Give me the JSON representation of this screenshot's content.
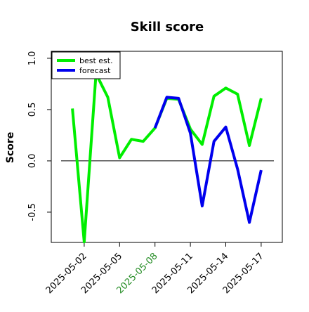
{
  "chart_data": {
    "type": "line",
    "title": "Skill score",
    "y_label": "Score",
    "x": [
      "2025-05-01",
      "2025-05-02",
      "2025-05-03",
      "2025-05-04",
      "2025-05-05",
      "2025-05-06",
      "2025-05-07",
      "2025-05-08",
      "2025-05-09",
      "2025-05-10",
      "2025-05-11",
      "2025-05-12",
      "2025-05-13",
      "2025-05-14",
      "2025-05-15",
      "2025-05-16",
      "2025-05-17"
    ],
    "series": [
      {
        "name": "best est.",
        "color": "#00ee00",
        "values": [
          0.51,
          -0.79,
          0.85,
          0.62,
          0.03,
          0.21,
          0.19,
          0.32,
          0.61,
          0.6,
          0.31,
          0.16,
          0.63,
          0.71,
          0.65,
          0.15,
          0.61
        ]
      },
      {
        "name": "forecast",
        "color": "#0000ee",
        "values": [
          null,
          null,
          null,
          null,
          null,
          null,
          null,
          0.32,
          0.62,
          0.61,
          0.27,
          -0.44,
          0.19,
          0.33,
          -0.08,
          -0.6,
          -0.09
        ]
      }
    ],
    "xlim": [
      "2025-04-29T05:00:00Z",
      "2025-05-18T19:00:00Z"
    ],
    "xticks": [
      "2025-05-02",
      "2025-05-05",
      "2025-05-08",
      "2025-05-11",
      "2025-05-14",
      "2025-05-17"
    ],
    "xtick_colors": [
      "#000000",
      "#000000",
      "#228b22",
      "#000000",
      "#000000",
      "#000000"
    ],
    "ylim": [
      -0.795,
      1.068
    ],
    "yticks": [
      -0.5,
      {
        "value": 0,
        "label": "0.0"
      },
      0.5,
      {
        "value": 1,
        "label": "1.0"
      }
    ],
    "hline": 0,
    "legend": "top-left"
  }
}
